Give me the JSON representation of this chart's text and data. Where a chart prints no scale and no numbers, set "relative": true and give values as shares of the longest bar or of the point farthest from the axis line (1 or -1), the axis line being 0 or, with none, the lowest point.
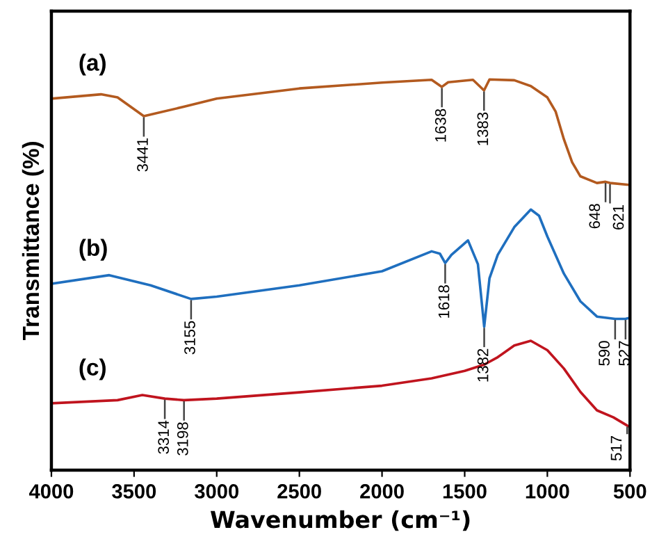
{
  "chart_data": {
    "type": "line",
    "xlabel": "Wavenumber (cm⁻¹)",
    "ylabel": "Transmittance (%)",
    "relative": true,
    "tick_labels": "x",
    "grid": false,
    "legend": false,
    "marker": "none",
    "line_style": "solid",
    "xlim": [
      4000,
      500
    ],
    "xticks": [
      4000,
      3500,
      3000,
      2500,
      2000,
      1500,
      1000,
      500
    ],
    "series": [
      {
        "name": "(a)",
        "color": "#b35a1f",
        "x": [
          4000,
          3700,
          3600,
          3441,
          3200,
          3000,
          2500,
          2000,
          1700,
          1638,
          1600,
          1450,
          1383,
          1350,
          1200,
          1100,
          1000,
          950,
          900,
          850,
          800,
          700,
          648,
          621,
          500
        ],
        "values": [
          0.951,
          0.962,
          0.954,
          0.906,
          0.93,
          0.951,
          0.977,
          0.992,
          0.999,
          0.981,
          0.993,
          0.999,
          0.972,
          1.0,
          0.998,
          0.983,
          0.954,
          0.918,
          0.847,
          0.788,
          0.752,
          0.735,
          0.738,
          0.735,
          0.73
        ]
      },
      {
        "name": "(b)",
        "color": "#1f6fbf",
        "x": [
          4000,
          3650,
          3400,
          3155,
          3000,
          2500,
          2000,
          1700,
          1650,
          1618,
          1580,
          1480,
          1420,
          1382,
          1350,
          1300,
          1200,
          1100,
          1050,
          1000,
          900,
          800,
          700,
          590,
          527,
          500
        ],
        "values": [
          0.477,
          0.499,
          0.473,
          0.438,
          0.444,
          0.473,
          0.509,
          0.56,
          0.554,
          0.53,
          0.551,
          0.588,
          0.527,
          0.367,
          0.491,
          0.551,
          0.622,
          0.667,
          0.651,
          0.598,
          0.503,
          0.432,
          0.393,
          0.387,
          0.387,
          0.39
        ]
      },
      {
        "name": "(c)",
        "color": "#c0141e",
        "x": [
          4000,
          3600,
          3450,
          3314,
          3198,
          3000,
          2500,
          2000,
          1700,
          1500,
          1382,
          1300,
          1200,
          1100,
          1000,
          900,
          800,
          700,
          600,
          517,
          500
        ],
        "values": [
          0.171,
          0.179,
          0.192,
          0.183,
          0.179,
          0.183,
          0.199,
          0.216,
          0.235,
          0.254,
          0.27,
          0.289,
          0.319,
          0.331,
          0.307,
          0.26,
          0.2,
          0.153,
          0.135,
          0.114,
          0.11
        ]
      }
    ],
    "annotations": [
      {
        "text": "3441",
        "x": 3441,
        "y": 0.906
      },
      {
        "text": "1638",
        "x": 1638,
        "y": 0.981
      },
      {
        "text": "1383",
        "x": 1383,
        "y": 0.972
      },
      {
        "text": "648",
        "x": 648,
        "y": 0.738
      },
      {
        "text": "621",
        "x": 621,
        "y": 0.735
      },
      {
        "text": "3155",
        "x": 3155,
        "y": 0.438
      },
      {
        "text": "1618",
        "x": 1618,
        "y": 0.53
      },
      {
        "text": "1382",
        "x": 1382,
        "y": 0.367
      },
      {
        "text": "590",
        "x": 590,
        "y": 0.387
      },
      {
        "text": "527",
        "x": 527,
        "y": 0.387
      },
      {
        "text": "3314",
        "x": 3314,
        "y": 0.183
      },
      {
        "text": "3198",
        "x": 3198,
        "y": 0.179
      },
      {
        "text": "517",
        "x": 517,
        "y": 0.114
      }
    ]
  }
}
